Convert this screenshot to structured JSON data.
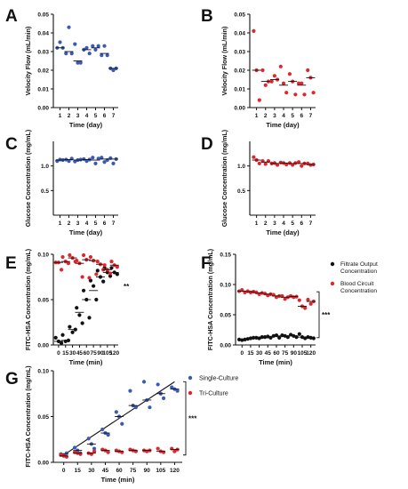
{
  "colors": {
    "blue": "#3a5bb5",
    "red": "#e0262c",
    "black": "#111111"
  },
  "chart_data": [
    {
      "panel": "A",
      "type": "scatter",
      "xlabel": "Time (day)",
      "ylabel": "Velocity Flow (mL/min)",
      "ylim": [
        0,
        0.05
      ],
      "yticks": [
        "0.00",
        "0.01",
        "0.02",
        "0.03",
        "0.04",
        "0.05"
      ],
      "categories": [
        "1",
        "2",
        "3",
        "4",
        "5",
        "6",
        "7"
      ],
      "series": [
        {
          "color": "blue",
          "values": [
            [
              0.032,
              0.035,
              0.032
            ],
            [
              0.029,
              0.043,
              0.029
            ],
            [
              0.034,
              0.024,
              0.024
            ],
            [
              0.031,
              0.032,
              0.029
            ],
            [
              0.033,
              0.031,
              0.033
            ],
            [
              0.028,
              0.033,
              0.028
            ],
            [
              0.021,
              0.02,
              0.021
            ]
          ],
          "medians": [
            0.032,
            0.03,
            0.025,
            0.031,
            0.032,
            0.029,
            0.021
          ]
        }
      ]
    },
    {
      "panel": "B",
      "type": "scatter",
      "xlabel": "Time (day)",
      "ylabel": "Velocity Flow (mL/min)",
      "ylim": [
        0,
        0.05
      ],
      "yticks": [
        "0.00",
        "0.01",
        "0.02",
        "0.03",
        "0.04",
        "0.05"
      ],
      "categories": [
        "1",
        "2",
        "3",
        "4",
        "5",
        "6",
        "7"
      ],
      "series": [
        {
          "color": "red",
          "values": [
            [
              0.041,
              0.02,
              0.004
            ],
            [
              0.02,
              0.012,
              0.014
            ],
            [
              0.014,
              0.017,
              0.015
            ],
            [
              0.022,
              0.013,
              0.008
            ],
            [
              0.018,
              0.014,
              0.007
            ],
            [
              0.013,
              0.013,
              0.007
            ],
            [
              0.02,
              0.016,
              0.008
            ]
          ],
          "medians": [
            0.02,
            0.014,
            0.015,
            0.012,
            0.014,
            0.012,
            0.016
          ]
        }
      ]
    },
    {
      "panel": "C",
      "type": "scatter",
      "xlabel": "Time (day)",
      "ylabel": "Glucose Concentration (mg/mL)",
      "ylim": [
        0,
        1.5
      ],
      "yticks": [
        "0.5",
        "1.0"
      ],
      "ytick_values": [
        0.5,
        1.0
      ],
      "categories": [
        "1",
        "2",
        "3",
        "4",
        "5",
        "6",
        "7"
      ],
      "series": [
        {
          "color": "blue",
          "values": [
            [
              1.1,
              1.13,
              1.12
            ],
            [
              1.13,
              1.1,
              1.15
            ],
            [
              1.09,
              1.12,
              1.13
            ],
            [
              1.14,
              1.1,
              1.13
            ],
            [
              1.17,
              1.05,
              1.15
            ],
            [
              1.17,
              1.08,
              1.12
            ],
            [
              1.16,
              1.05,
              1.14
            ]
          ],
          "medians": [
            1.12,
            1.13,
            1.12,
            1.13,
            1.12,
            1.14,
            1.14
          ]
        }
      ]
    },
    {
      "panel": "D",
      "type": "scatter",
      "xlabel": "Time (day)",
      "ylabel": "Glucose Concentration (mg/mL)",
      "ylim": [
        0,
        1.5
      ],
      "yticks": [
        "0.5",
        "1.0"
      ],
      "ytick_values": [
        0.5,
        1.0
      ],
      "categories": [
        "1",
        "2",
        "3",
        "4",
        "5",
        "6",
        "7"
      ],
      "series": [
        {
          "color": "red",
          "values": [
            [
              1.18,
              1.12,
              1.05
            ],
            [
              1.1,
              1.04,
              1.1
            ],
            [
              1.05,
              1.06,
              1.02
            ],
            [
              1.07,
              1.06,
              1.03
            ],
            [
              1.06,
              1.02,
              1.06
            ],
            [
              1.08,
              1.0,
              1.05
            ],
            [
              1.05,
              1.02,
              1.03
            ]
          ],
          "medians": [
            1.12,
            1.08,
            1.05,
            1.06,
            1.05,
            1.05,
            1.03
          ]
        }
      ]
    },
    {
      "panel": "E",
      "type": "scatter",
      "xlabel": "Time (min)",
      "ylabel": "FITC-HSA Concentration (mg/mL)",
      "ylim": [
        0,
        0.1
      ],
      "yticks": [
        "0.00",
        "0.05",
        "0.10"
      ],
      "ytick_values": [
        0,
        0.05,
        0.1
      ],
      "categories": [
        "0",
        "15",
        "30",
        "45",
        "60",
        "75",
        "90",
        "105",
        "120"
      ],
      "annotation": "**",
      "series": [
        {
          "color": "black",
          "values": [
            [
              0.008,
              0.004,
              0.002
            ],
            [
              0.011,
              0.004,
              0.005
            ],
            [
              0.02,
              0.014,
              0.017
            ],
            [
              0.041,
              0.033,
              0.024
            ],
            [
              0.06,
              0.05,
              0.03
            ],
            [
              0.071,
              0.065,
              0.05
            ],
            [
              0.082,
              0.075,
              0.07
            ],
            [
              0.085,
              0.08,
              0.076
            ],
            [
              0.085,
              0.08,
              0.078
            ]
          ],
          "medians": [
            0.004,
            0.005,
            0.017,
            0.036,
            0.05,
            0.06,
            0.075,
            0.08,
            0.08
          ]
        },
        {
          "color": "red",
          "values": [
            [
              0.091,
              0.091,
              0.083
            ],
            [
              0.097,
              0.092,
              0.09
            ],
            [
              0.099,
              0.096,
              0.092
            ],
            [
              0.093,
              0.09,
              0.075
            ],
            [
              0.099,
              0.094,
              0.074
            ],
            [
              0.097,
              0.093,
              0.078
            ],
            [
              0.092,
              0.089,
              0.083
            ],
            [
              0.088,
              0.083,
              0.079
            ],
            [
              0.092,
              0.088,
              0.086
            ]
          ],
          "medians": [
            0.091,
            0.092,
            0.096,
            0.09,
            0.094,
            0.093,
            0.089,
            0.083,
            0.088
          ]
        }
      ]
    },
    {
      "panel": "F",
      "type": "scatter",
      "xlabel": "Time (min)",
      "ylabel": "FITC-HSA Concentration (mg/mL)",
      "ylim": [
        0,
        0.15
      ],
      "yticks": [
        "0.00",
        "0.05",
        "0.10",
        "0.15"
      ],
      "ytick_values": [
        0,
        0.05,
        0.1,
        0.15
      ],
      "categories": [
        "0",
        "15",
        "30",
        "45",
        "60",
        "75",
        "90",
        "105",
        "120"
      ],
      "annotation": "***",
      "legend": [
        "Filtrate Output Concentration",
        "Blood Circuit Concentration"
      ],
      "series": [
        {
          "color": "black",
          "name": "Filtrate Output Concentration",
          "values": [
            [
              0.009,
              0.008,
              0.009
            ],
            [
              0.01,
              0.011,
              0.012
            ],
            [
              0.012,
              0.011,
              0.013
            ],
            [
              0.013,
              0.014,
              0.012
            ],
            [
              0.015,
              0.016,
              0.012
            ],
            [
              0.016,
              0.015,
              0.013
            ],
            [
              0.017,
              0.015,
              0.013
            ],
            [
              0.018,
              0.013,
              0.011
            ],
            [
              0.013,
              0.012,
              0.011
            ]
          ],
          "medians": [
            0.009,
            0.011,
            0.012,
            0.013,
            0.015,
            0.015,
            0.015,
            0.013,
            0.012
          ]
        },
        {
          "color": "red",
          "name": "Blood Circuit Concentration",
          "values": [
            [
              0.089,
              0.091,
              0.087
            ],
            [
              0.089,
              0.087,
              0.088
            ],
            [
              0.087,
              0.084,
              0.086
            ],
            [
              0.085,
              0.082,
              0.084
            ],
            [
              0.083,
              0.079,
              0.081
            ],
            [
              0.081,
              0.076,
              0.079
            ],
            [
              0.081,
              0.079,
              0.08
            ],
            [
              0.074,
              0.064,
              0.061
            ],
            [
              0.075,
              0.068,
              0.072
            ]
          ],
          "medians": [
            0.089,
            0.088,
            0.086,
            0.084,
            0.081,
            0.079,
            0.08,
            0.064,
            0.072
          ]
        }
      ]
    },
    {
      "panel": "G",
      "type": "scatter",
      "xlabel": "Time (min)",
      "ylabel": "FITC-HSA Concentration (mg/mL)",
      "ylim": [
        0,
        0.1
      ],
      "yticks": [
        "0.00",
        "0.05",
        "0.10"
      ],
      "ytick_values": [
        0,
        0.05,
        0.1
      ],
      "categories": [
        "0",
        "15",
        "30",
        "45",
        "60",
        "75",
        "90",
        "105",
        "120"
      ],
      "annotation": "***",
      "legend": [
        "Single-Culture",
        "Tri-Culture"
      ],
      "series": [
        {
          "color": "blue",
          "name": "Single-Culture",
          "values": [
            [
              0.009,
              0.008,
              0.01
            ],
            [
              0.016,
              0.013,
              0.01
            ],
            [
              0.026,
              0.02,
              0.015
            ],
            [
              0.036,
              0.032,
              0.03
            ],
            [
              0.055,
              0.05,
              0.042
            ],
            [
              0.078,
              0.062,
              0.06
            ],
            [
              0.088,
              0.068,
              0.06
            ],
            [
              0.085,
              0.075,
              0.07
            ],
            [
              0.082,
              0.08,
              0.078
            ]
          ],
          "medians": [
            0.009,
            0.013,
            0.02,
            0.032,
            0.05,
            0.062,
            0.068,
            0.075,
            0.08
          ]
        },
        {
          "color": "red",
          "name": "Tri-Culture",
          "values": [
            [
              0.008,
              0.007,
              0.006
            ],
            [
              0.011,
              0.01,
              0.009
            ],
            [
              0.01,
              0.009,
              0.012
            ],
            [
              0.014,
              0.013,
              0.011
            ],
            [
              0.013,
              0.012,
              0.011
            ],
            [
              0.014,
              0.013,
              0.012
            ],
            [
              0.013,
              0.012,
              0.013
            ],
            [
              0.015,
              0.012,
              0.011
            ],
            [
              0.015,
              0.012,
              0.014
            ]
          ],
          "medians": [
            0.007,
            0.01,
            0.01,
            0.013,
            0.012,
            0.013,
            0.013,
            0.012,
            0.014
          ]
        }
      ],
      "fit_line": [
        [
          0,
          0.008
        ],
        [
          120,
          0.088
        ]
      ]
    }
  ]
}
